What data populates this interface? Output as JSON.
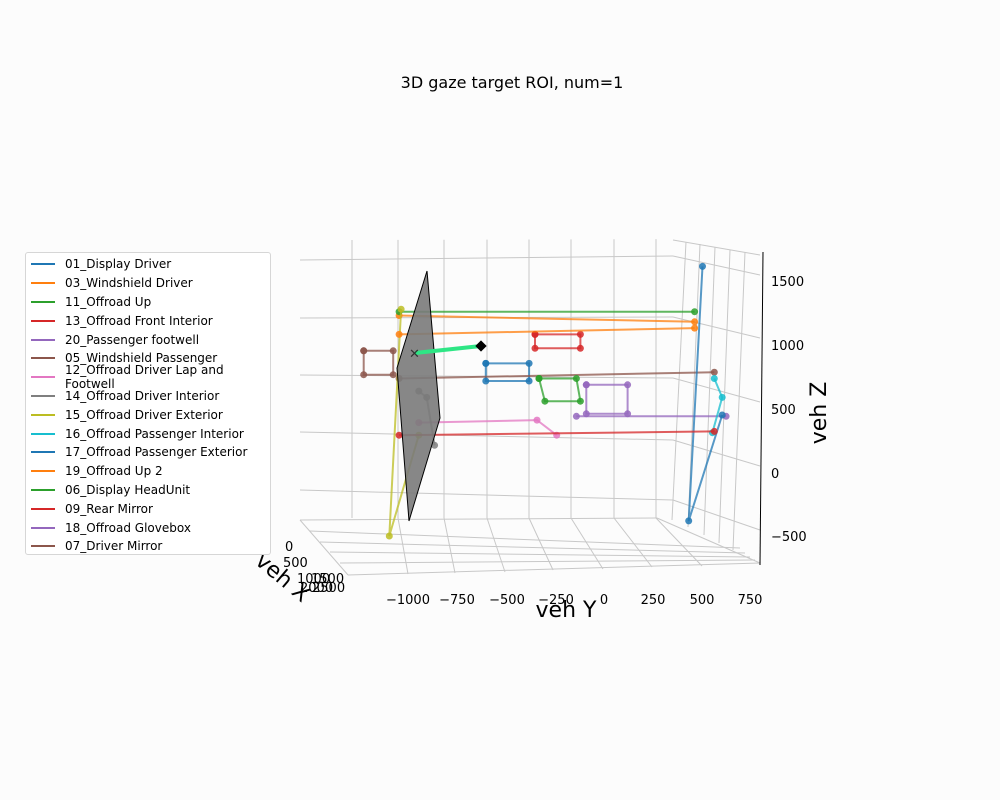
{
  "chart_data": {
    "type": "3d-line",
    "title": "3D gaze target ROI, num=1",
    "x_axis": {
      "label": "veh X",
      "ticks": [
        "0",
        "500",
        "1000",
        "1500",
        "2000",
        "2500"
      ]
    },
    "y_axis": {
      "label": "veh Y",
      "ticks": [
        "−1000",
        "−750",
        "−500",
        "−250",
        "0",
        "250",
        "500",
        "750"
      ],
      "range": [
        -1100,
        800
      ]
    },
    "z_axis": {
      "label": "veh Z",
      "ticks": [
        "1500",
        "1000",
        "500",
        "0",
        "−500"
      ],
      "range": [
        -600,
        1700
      ]
    },
    "grid": true,
    "legend_placement": "left",
    "series": [
      {
        "name": "01_Display Driver",
        "color": "#1f77b4",
        "points": [
          [
            -600,
            870
          ],
          [
            -380,
            870
          ],
          [
            -380,
            730
          ],
          [
            -600,
            730
          ],
          [
            -600,
            870
          ]
        ]
      },
      {
        "name": "03_Windshield Driver",
        "color": "#ff7f0e",
        "points": [
          [
            -1040,
            1250
          ],
          [
            460,
            1200
          ]
        ]
      },
      {
        "name": "11_Offroad Up",
        "color": "#2ca02c",
        "points": [
          [
            -1040,
            1280
          ],
          [
            460,
            1280
          ]
        ]
      },
      {
        "name": "13_Offroad Front Interior",
        "color": "#d62728",
        "points": [
          [
            -350,
            1100
          ],
          [
            -120,
            1100
          ],
          [
            -120,
            990
          ],
          [
            -350,
            990
          ],
          [
            -350,
            1100
          ]
        ]
      },
      {
        "name": "20_Passenger footwell",
        "color": "#9467bd",
        "points": [
          [
            620,
            450
          ],
          [
            -140,
            450
          ]
        ]
      },
      {
        "name": "05_Windshield Passenger",
        "color": "#8c564b",
        "points": [
          [
            -1040,
            750
          ],
          [
            560,
            800
          ]
        ]
      },
      {
        "name": "12_Offroad Driver Lap and Footwell",
        "color": "#e377c2",
        "points": [
          [
            -940,
            400
          ],
          [
            -340,
            420
          ],
          [
            -240,
            300
          ]
        ]
      },
      {
        "name": "14_Offroad Driver Interior",
        "color": "#7f7f7f",
        "points": [
          [
            -940,
            650
          ],
          [
            -900,
            600
          ],
          [
            -860,
            220
          ]
        ]
      },
      {
        "name": "15_Offroad Driver Exterior",
        "color": "#bcbd22",
        "points": [
          [
            -1030,
            1300
          ],
          [
            -1090,
            -500
          ],
          [
            -940,
            300
          ]
        ]
      },
      {
        "name": "16_Offroad Passenger Interior",
        "color": "#17becf",
        "points": [
          [
            560,
            750
          ],
          [
            600,
            600
          ],
          [
            550,
            320
          ]
        ]
      },
      {
        "name": "17_Offroad Passenger Exterior",
        "color": "#1f77b4",
        "points": [
          [
            500,
            1640
          ],
          [
            430,
            -380
          ],
          [
            600,
            460
          ]
        ]
      },
      {
        "name": "19_Offroad Up 2",
        "color": "#ff7f0e",
        "points": [
          [
            -1040,
            1100
          ],
          [
            460,
            1150
          ]
        ]
      },
      {
        "name": "06_Display HeadUnit",
        "color": "#2ca02c",
        "points": [
          [
            -330,
            750
          ],
          [
            -140,
            750
          ],
          [
            -120,
            570
          ],
          [
            -300,
            570
          ],
          [
            -330,
            750
          ]
        ]
      },
      {
        "name": "09_Rear Mirror",
        "color": "#d62728",
        "points": [
          [
            -1040,
            300
          ],
          [
            560,
            330
          ]
        ]
      },
      {
        "name": "18_Offroad Glovebox",
        "color": "#9467bd",
        "points": [
          [
            -90,
            700
          ],
          [
            120,
            700
          ],
          [
            120,
            470
          ],
          [
            -90,
            470
          ],
          [
            -90,
            700
          ]
        ]
      },
      {
        "name": "07_Driver Mirror",
        "color": "#8c564b",
        "points": [
          [
            -1220,
            970
          ],
          [
            -1070,
            970
          ],
          [
            -1070,
            780
          ],
          [
            -1220,
            780
          ],
          [
            -1220,
            970
          ]
        ]
      }
    ]
  }
}
